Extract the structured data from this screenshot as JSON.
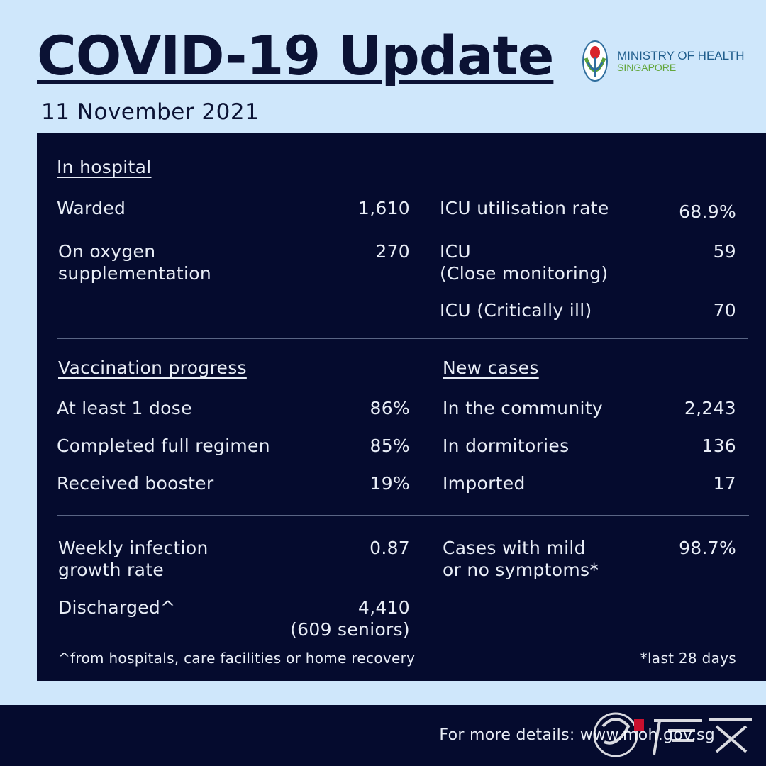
{
  "header": {
    "title": "COVID-19 Update",
    "date": "11 November 2021",
    "logo_line1": "MINISTRY OF HEALTH",
    "logo_line2": "SINGAPORE"
  },
  "hospital": {
    "heading": "In hospital",
    "warded_label": "Warded",
    "warded_value": "1,610",
    "oxygen_label_1": "On oxygen",
    "oxygen_label_2": "supplementation",
    "oxygen_value": "270",
    "icu_rate_label": "ICU utilisation rate",
    "icu_rate_value": "68.9%",
    "icu_close_label_1": "ICU",
    "icu_close_label_2": "(Close monitoring)",
    "icu_close_value": "59",
    "icu_critical_label": "ICU (Critically ill)",
    "icu_critical_value": "70"
  },
  "vaccination": {
    "heading": "Vaccination progress",
    "one_dose_label": "At least 1 dose",
    "one_dose_value": "86%",
    "full_label": "Completed full regimen",
    "full_value": "85%",
    "booster_label": "Received booster",
    "booster_value": "19%"
  },
  "new_cases": {
    "heading": "New cases",
    "community_label": "In the community",
    "community_value": "2,243",
    "dorm_label": "In dormitories",
    "dorm_value": "136",
    "imported_label": "Imported",
    "imported_value": "17"
  },
  "other": {
    "growth_label_1": "Weekly infection",
    "growth_label_2": "growth rate",
    "growth_value": "0.87",
    "discharged_label": "Discharged^",
    "discharged_value": "4,410",
    "discharged_seniors": "(609 seniors)",
    "mild_label_1": "Cases with mild",
    "mild_label_2": "or no symptoms*",
    "mild_value": "98.7%",
    "footnote_left": "^from hospitals, care facilities or home recovery",
    "footnote_right": "*last 28 days"
  },
  "footer": {
    "details": "For more details: www.moh.gov.sg"
  },
  "colors": {
    "background": "#cfe7fb",
    "panel": "#050b2e",
    "title": "#0b1234"
  }
}
